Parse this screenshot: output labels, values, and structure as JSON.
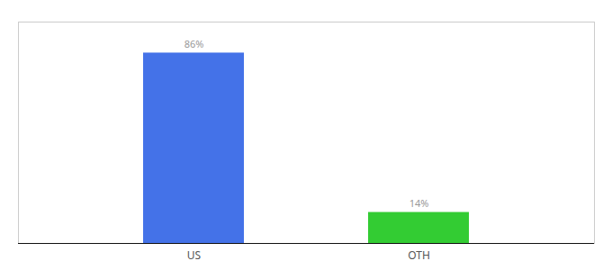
{
  "chart_data": {
    "type": "bar",
    "categories": [
      "US",
      "OTH"
    ],
    "values": [
      86,
      14
    ],
    "value_labels": [
      "86%",
      "14%"
    ],
    "colors": [
      "#4472e8",
      "#33cc33"
    ],
    "ylim": [
      0,
      100
    ],
    "data_labels": true,
    "tick_labels": "x"
  }
}
